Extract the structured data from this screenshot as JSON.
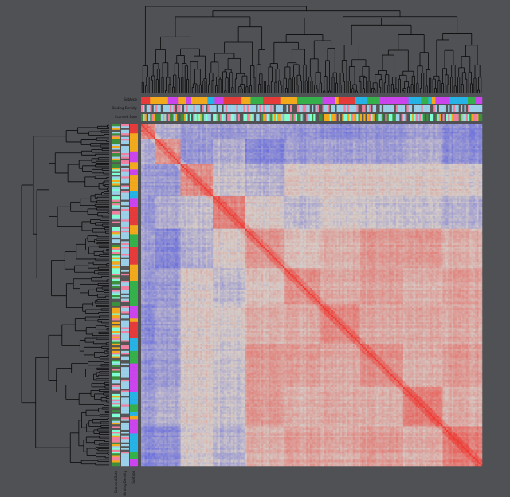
{
  "colors": {
    "background": "#505155",
    "low": "#3a45e6",
    "mid": "#d6cdc8",
    "high": "#ef3b34",
    "dendrogram": "#0a0a0a",
    "annotation_palette": [
      "#e63b3b",
      "#26b3e6",
      "#f2a91b",
      "#cc44ee",
      "#35b04a",
      "#9ad0e8",
      "#f07fa0",
      "#7fffd4",
      "#3c8f3c",
      "#555555"
    ]
  },
  "chart_data": {
    "type": "heatmap",
    "title": "",
    "xlabel": "",
    "ylabel": "",
    "matrix": "clustered correlation matrix, diagonal = maximum",
    "n_items": 190,
    "annotation_tracks": [
      {
        "name": "Subtype",
        "label": "Subtype"
      },
      {
        "name": "Binding Density",
        "label": "Binding Density"
      },
      {
        "name": "Scanned Date",
        "label": "Scanned Date"
      }
    ],
    "annotation_tracks_rotated": [
      {
        "name": "Scanned Date",
        "label": "Scanned Date"
      },
      {
        "name": "Binding Density",
        "label": "Binding Density"
      },
      {
        "name": "Subtype",
        "label": "Subtype"
      }
    ],
    "legend": "none",
    "grid": false,
    "dendrogram_top": true,
    "dendrogram_left": true
  }
}
